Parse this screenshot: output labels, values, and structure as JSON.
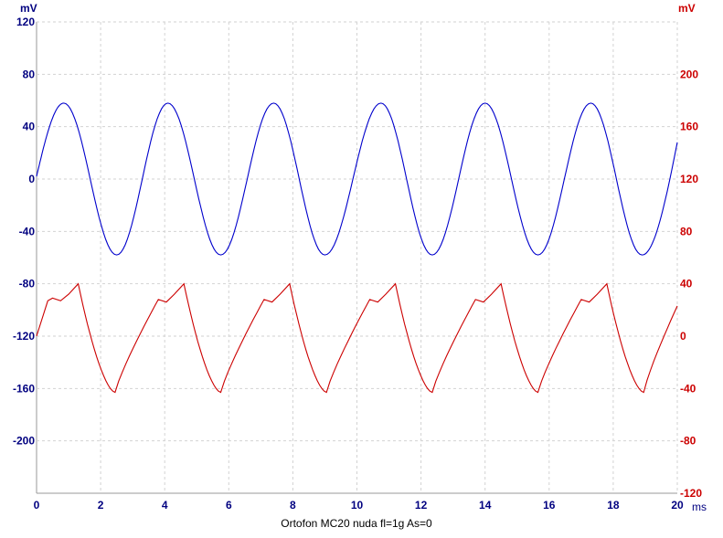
{
  "chart_data": {
    "type": "line",
    "title": "Ortofon MC20 nuda  fl=1g  As=0",
    "xlabel": "ms",
    "x_ticks": [
      "0",
      "2",
      "4",
      "6",
      "8",
      "10",
      "12",
      "14",
      "16",
      "18",
      "20"
    ],
    "xlim": [
      0,
      20
    ],
    "grid": true,
    "y_left": {
      "label": "mV",
      "color": "#000080",
      "ylim": [
        -240,
        120
      ],
      "ticks": [
        "120",
        "80",
        "40",
        "0",
        "-40",
        "-80",
        "-120",
        "-160",
        "-200"
      ]
    },
    "y_right": {
      "label": "mV",
      "color": "#cc0000",
      "ylim": [
        -120,
        240
      ],
      "ticks": [
        "200",
        "160",
        "120",
        "80",
        "40",
        "0",
        "-40",
        "-80",
        "-120"
      ]
    },
    "series": [
      {
        "axis": "left",
        "color": "#0000cc",
        "waveform": "sine",
        "amplitude": 58,
        "offset": 0,
        "period_ms": 3.3,
        "peak_times_ms": [
          0.85,
          4.1,
          7.4,
          10.75,
          14.0,
          17.3
        ],
        "trough_times_ms": [
          2.5,
          5.75,
          9.0,
          12.35,
          15.65,
          18.9
        ],
        "start_value": 2,
        "end_value": 28
      },
      {
        "axis": "right",
        "color": "#cc0000",
        "waveform": "sawtooth",
        "max": 40,
        "min": -43,
        "shoulder": 28,
        "period_ms": 3.3,
        "peak_times_ms": [
          1.3,
          4.6,
          7.9,
          11.2,
          14.5,
          17.8
        ],
        "trough_times_ms": [
          2.45,
          5.75,
          9.05,
          12.35,
          15.65,
          18.95
        ],
        "start_value": 0,
        "end_value": 23
      }
    ]
  }
}
